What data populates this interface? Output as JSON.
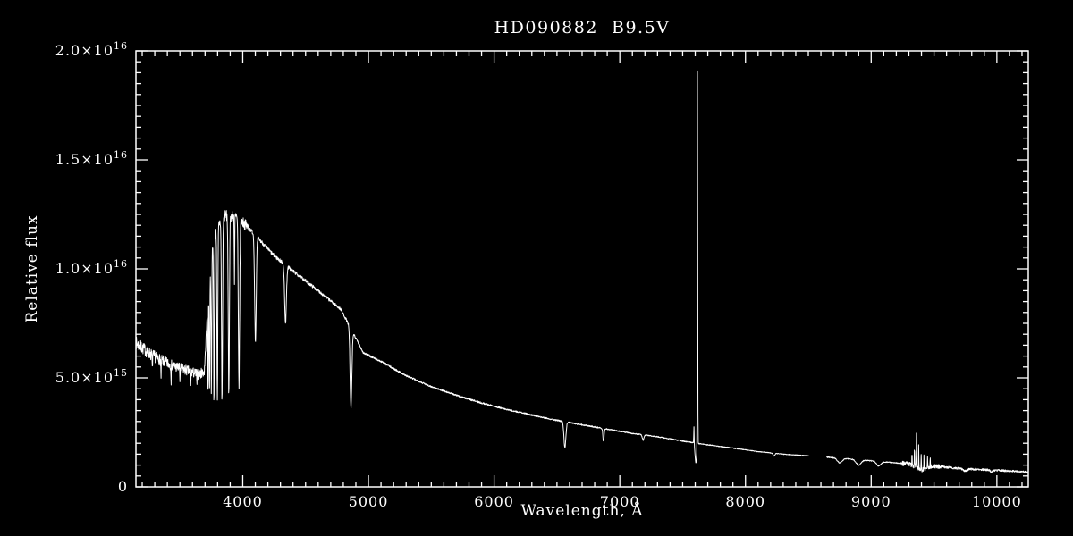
{
  "figure": {
    "background": "#000000",
    "line_color": "#ffffff"
  },
  "chart_data": {
    "type": "line",
    "title": "HD090882  B9.5V",
    "xlabel": "Wavelength, Å",
    "ylabel": "Relative flux",
    "xlim": [
      3150,
      10250
    ],
    "ylim": [
      0,
      2e+16
    ],
    "grid": false,
    "legend": "none",
    "x_ticks": {
      "major": [
        4000,
        5000,
        6000,
        7000,
        8000,
        9000,
        10000
      ],
      "labels": [
        "4000",
        "5000",
        "6000",
        "7000",
        "8000",
        "9000",
        "10000"
      ],
      "minor_step": 100
    },
    "y_ticks": {
      "major": [
        0,
        5000000000000000.0,
        1e+16,
        1.5e+16,
        2e+16
      ],
      "labels": [
        "0",
        "5.0×10^15",
        "1.0×10^16",
        "1.5×10^16",
        "2.0×10^16"
      ],
      "minor_step": 500000000000000.0
    },
    "continuum": [
      [
        3150,
        6600000000000000.0
      ],
      [
        3250,
        6150000000000000.0
      ],
      [
        3350,
        5800000000000000.0
      ],
      [
        3450,
        5550000000000000.0
      ],
      [
        3550,
        5350000000000000.0
      ],
      [
        3650,
        5150000000000000.0
      ],
      [
        3695,
        5300000000000000.0
      ],
      [
        3720,
        8200000000000000.0
      ],
      [
        3760,
        1.1e+16
      ],
      [
        3800,
        1.2e+16
      ],
      [
        3860,
        1.245e+16
      ],
      [
        3950,
        1.24e+16
      ],
      [
        4000,
        1.215e+16
      ],
      [
        4100,
        1.155e+16
      ],
      [
        4250,
        1.06e+16
      ],
      [
        4400,
        9900000000000000.0
      ],
      [
        4600,
        9000000000000000.0
      ],
      [
        4780,
        8150000000000000.0
      ],
      [
        4960,
        6150000000000000.0
      ],
      [
        5100,
        5750000000000000.0
      ],
      [
        5300,
        5100000000000000.0
      ],
      [
        5500,
        4600000000000000.0
      ],
      [
        5700,
        4200000000000000.0
      ],
      [
        5900,
        3850000000000000.0
      ],
      [
        6100,
        3550000000000000.0
      ],
      [
        6300,
        3300000000000000.0
      ],
      [
        6500,
        3050000000000000.0
      ],
      [
        6700,
        2850000000000000.0
      ],
      [
        6900,
        2650000000000000.0
      ],
      [
        7100,
        2450000000000000.0
      ],
      [
        7300,
        2300000000000000.0
      ],
      [
        7500,
        2100000000000000.0
      ],
      [
        7700,
        1930000000000000.0
      ],
      [
        7900,
        1780000000000000.0
      ],
      [
        8100,
        1620000000000000.0
      ],
      [
        8300,
        1500000000000000.0
      ],
      [
        8510,
        1420000000000000.0
      ],
      [
        8645,
        1360000000000000.0
      ],
      [
        8900,
        1250000000000000.0
      ],
      [
        9100,
        1150000000000000.0
      ],
      [
        9300,
        1050000000000000.0
      ],
      [
        9500,
        950000000000000.0
      ],
      [
        9700,
        850000000000000.0
      ],
      [
        9900,
        790000000000000.0
      ],
      [
        10100,
        730000000000000.0
      ],
      [
        10250,
        680000000000000.0
      ]
    ],
    "absorption_lines": [
      [
        3280,
        0.12,
        2
      ],
      [
        3350,
        0.16,
        2.2
      ],
      [
        3430,
        0.13,
        2
      ],
      [
        3500,
        0.11,
        2
      ],
      [
        3585,
        0.15,
        2.5
      ],
      [
        3635,
        0.1,
        2
      ],
      [
        3723,
        0.5,
        3
      ],
      [
        3735,
        0.55,
        3.5
      ],
      [
        3750,
        0.6,
        4
      ],
      [
        3771,
        0.66,
        4.5
      ],
      [
        3798,
        0.68,
        5
      ],
      [
        3835,
        0.68,
        6
      ],
      [
        3889,
        0.67,
        6.5
      ],
      [
        3934,
        0.25,
        2.5
      ],
      [
        3970,
        0.62,
        7.5
      ],
      [
        4101,
        0.42,
        9
      ],
      [
        4340,
        0.26,
        10
      ],
      [
        4861,
        0.5,
        10
      ],
      [
        6563,
        0.4,
        11
      ],
      [
        6870,
        0.22,
        7
      ],
      [
        7185,
        0.1,
        9
      ],
      [
        7605,
        0.45,
        9
      ],
      [
        8227,
        0.08,
        10
      ],
      [
        8750,
        0.16,
        26
      ],
      [
        8900,
        0.2,
        28
      ],
      [
        9060,
        0.18,
        24
      ],
      [
        9400,
        0.22,
        55
      ],
      [
        9750,
        0.12,
        22
      ],
      [
        9960,
        0.1,
        18
      ]
    ],
    "emission_spikes": [
      [
        7618,
        1.72e+16,
        2.5
      ]
    ],
    "noise_spikes": [
      [
        7590,
        800000000000000.0,
        2
      ],
      [
        9325,
        500000000000000.0,
        2
      ],
      [
        9345,
        900000000000000.0,
        2
      ],
      [
        9360,
        1500000000000000.0,
        2
      ],
      [
        9378,
        1100000000000000.0,
        2
      ],
      [
        9398,
        800000000000000.0,
        2
      ],
      [
        9420,
        600000000000000.0,
        2
      ],
      [
        9448,
        500000000000000.0,
        2
      ],
      [
        9470,
        400000000000000.0,
        2
      ]
    ],
    "noise_segments": [
      [
        3150,
        3700,
        0.045
      ],
      [
        3700,
        4050,
        0.02
      ],
      [
        4050,
        5800,
        0.008
      ],
      [
        5800,
        8510,
        0.01
      ],
      [
        8645,
        9240,
        0.018
      ],
      [
        9240,
        9560,
        0.1
      ],
      [
        9560,
        10250,
        0.06
      ]
    ],
    "gaps": [
      [
        8510,
        8645
      ]
    ],
    "noise_seed": 7,
    "sample_step": 2
  }
}
